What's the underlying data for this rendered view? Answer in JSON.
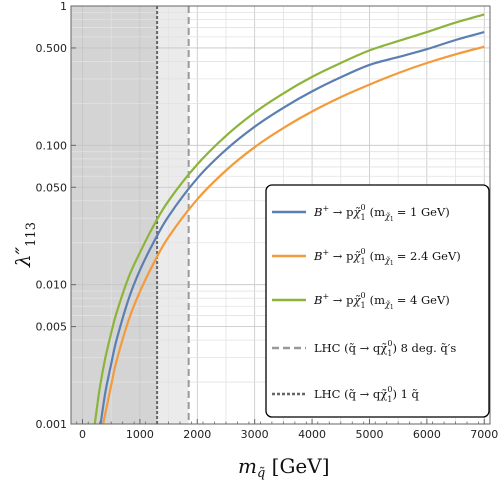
{
  "chart_data": {
    "type": "line",
    "xlabel": "m_q̃ [GeV]",
    "ylabel": "λ″₁₁₃",
    "xscale": "linear",
    "yscale": "log",
    "xlim": [
      -200,
      7100
    ],
    "ylim": [
      0.001,
      1
    ],
    "grid": true,
    "x_ticks": [
      0,
      1000,
      2000,
      3000,
      4000,
      5000,
      6000,
      7000
    ],
    "x_tick_labels": [
      "0",
      "1000",
      "2000",
      "3000",
      "4000",
      "5000",
      "6000",
      "7000"
    ],
    "y_ticks": [
      0.001,
      0.005,
      0.01,
      0.05,
      0.1,
      0.5,
      1
    ],
    "y_tick_labels": [
      "0.001",
      "0.005",
      "0.010",
      "0.050",
      "0.100",
      "0.500",
      "1"
    ],
    "x": [
      200,
      300,
      400,
      500,
      600,
      800,
      1000,
      1250,
      1500,
      2000,
      2500,
      3000,
      3500,
      4000,
      4500,
      5000,
      5500,
      6000,
      6500,
      7000
    ],
    "series": [
      {
        "name": "B⁺ → p χ̃₁⁰ (m χ̃₁⁰ = 1 GeV)",
        "color": "#5b7fb0",
        "values": [
          null,
          0.0009,
          0.0017,
          0.0027,
          0.0041,
          0.0078,
          0.0127,
          0.0205,
          0.031,
          0.058,
          0.093,
          0.136,
          0.186,
          0.244,
          0.308,
          0.378,
          0.43,
          0.49,
          0.57,
          0.65
        ]
      },
      {
        "name": "B⁺ → p χ̃₁⁰ (m χ̃₁⁰ = 2.4 GeV)",
        "color": "#f39a3b",
        "values": [
          null,
          null,
          0.0012,
          0.0019,
          0.0029,
          0.0055,
          0.0089,
          0.0145,
          0.022,
          0.041,
          0.066,
          0.097,
          0.133,
          0.175,
          0.222,
          0.273,
          0.33,
          0.39,
          0.45,
          0.51
        ]
      },
      {
        "name": "B⁺ → p χ̃₁⁰ (m χ̃₁⁰ = 4 GeV)",
        "color": "#8db43a",
        "values": [
          0.0009,
          0.0018,
          0.003,
          0.0045,
          0.0064,
          0.0112,
          0.017,
          0.027,
          0.04,
          0.073,
          0.117,
          0.172,
          0.236,
          0.31,
          0.39,
          0.48,
          0.56,
          0.65,
          0.76,
          0.87
        ]
      }
    ],
    "bounds": [
      {
        "name": "LHC (q̃ → q χ̃₁⁰) 8 deg. q̃′s",
        "x": 1850,
        "style": "dashed",
        "color": "#999999",
        "shade": "#ebebeb"
      },
      {
        "name": "LHC (q̃ → q χ̃₁⁰) 1 q̃",
        "x": 1300,
        "style": "dotted",
        "color": "#666666",
        "shade": "#d4d4d4"
      }
    ],
    "legend_position": "lower-right"
  },
  "legend": {
    "items": [
      {
        "prefix": "B",
        "sup1": "+",
        "mid": " → p",
        "chi": "χ̃",
        "chisub": "1",
        "chisup": "0",
        "mass": "= 1 GeV)"
      },
      {
        "prefix": "B",
        "sup1": "+",
        "mid": " → p",
        "chi": "χ̃",
        "chisub": "1",
        "chisup": "0",
        "mass": "= 2.4 GeV)"
      },
      {
        "prefix": "B",
        "sup1": "+",
        "mid": " → p",
        "chi": "χ̃",
        "chisub": "1",
        "chisup": "0",
        "mass": "= 4 GeV)"
      }
    ],
    "lhc8": "LHC (q̃ → qχ̃",
    "lhc8_tail": ") 8 deg. q̃′s",
    "lhc1": "LHC (q̃ → qχ̃",
    "lhc1_tail": ") 1 q̃",
    "sub1": "1",
    "sup0": "0",
    "mopen": "(m",
    "mchi": "χ̃",
    "mchisub": "1",
    "mchisup": "0"
  },
  "axis_titles": {
    "x_main": "m",
    "x_sub": "q̃",
    "x_unit": " [GeV]",
    "y_main": "λ″",
    "y_sub": "113"
  }
}
